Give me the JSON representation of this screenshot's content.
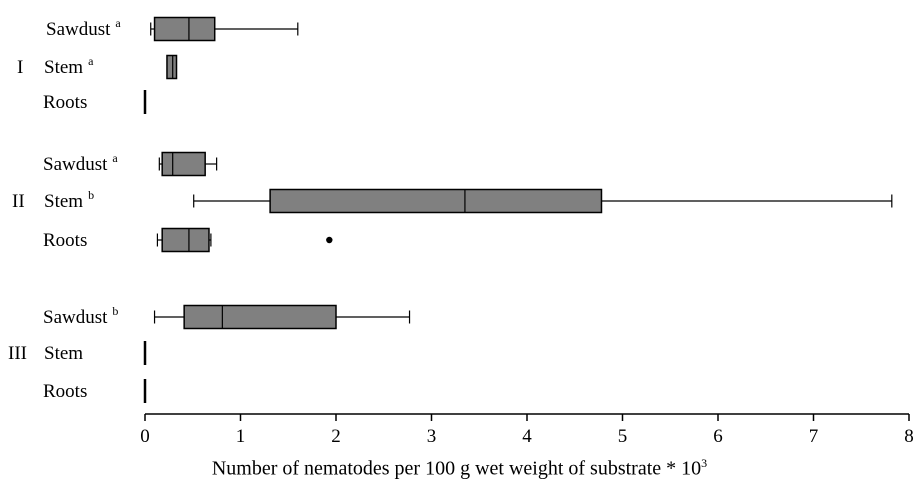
{
  "chart_data": {
    "type": "boxplot",
    "orientation": "horizontal",
    "xlabel": "Number of nematodes per 100 g wet weight of substrate * 10",
    "xlabel_exponent": "3",
    "xlim": [
      0,
      8
    ],
    "xticks": [
      "0",
      "1",
      "2",
      "3",
      "4",
      "5",
      "6",
      "7",
      "8"
    ],
    "groups": [
      {
        "name": "I",
        "categories": [
          {
            "label": "Sawdust",
            "sup": "a",
            "min": 0.06,
            "q1": 0.1,
            "median": 0.46,
            "q3": 0.73,
            "max": 1.6,
            "outliers": []
          },
          {
            "label": "Stem",
            "sup": "a",
            "min": 0.23,
            "q1": 0.23,
            "median": 0.29,
            "q3": 0.33,
            "max": 0.33,
            "outliers": []
          },
          {
            "label": "Roots",
            "sup": "",
            "min": 0,
            "q1": 0,
            "median": 0,
            "q3": 0,
            "max": 0,
            "outliers": []
          }
        ]
      },
      {
        "name": "II",
        "categories": [
          {
            "label": "Sawdust",
            "sup": "a",
            "min": 0.15,
            "q1": 0.18,
            "median": 0.29,
            "q3": 0.63,
            "max": 0.75,
            "outliers": []
          },
          {
            "label": "Stem",
            "sup": "b",
            "min": 0.51,
            "q1": 1.31,
            "median": 3.35,
            "q3": 4.78,
            "max": 7.82,
            "outliers": []
          },
          {
            "label": "Roots",
            "sup": "",
            "min": 0.13,
            "q1": 0.18,
            "median": 0.46,
            "q3": 0.67,
            "max": 0.69,
            "outliers": [
              1.93
            ]
          }
        ]
      },
      {
        "name": "III",
        "categories": [
          {
            "label": "Sawdust",
            "sup": "b",
            "min": 0.1,
            "q1": 0.41,
            "median": 0.81,
            "q3": 2.0,
            "max": 2.77,
            "outliers": []
          },
          {
            "label": "Stem",
            "sup": "",
            "min": 0,
            "q1": 0,
            "median": 0,
            "q3": 0,
            "max": 0,
            "outliers": []
          },
          {
            "label": "Roots",
            "sup": "",
            "min": 0,
            "q1": 0,
            "median": 0,
            "q3": 0,
            "max": 0,
            "outliers": []
          }
        ]
      }
    ],
    "colors": {
      "box_fill": "#808080",
      "stroke": "#000000"
    }
  }
}
